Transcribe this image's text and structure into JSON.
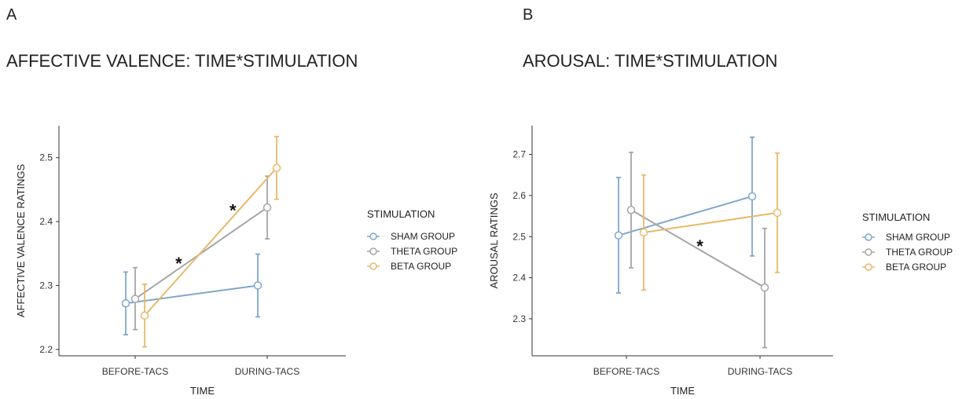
{
  "chart_data": [
    {
      "type": "line",
      "panel": "A",
      "title": "AFFECTIVE VALENCE: TIME*STIMULATION",
      "xlabel": "TIME",
      "ylabel": "AFFECTIVE VALENCE RATINGS",
      "categories": [
        "BEFORE-TACS",
        "DURING-TACS"
      ],
      "ylim": [
        2.19,
        2.55
      ],
      "yticks": [
        "2.2",
        "2.3",
        "2.4",
        "2.5"
      ],
      "legend_title": "STIMULATION",
      "legend_position": "right",
      "series": [
        {
          "name": "SHAM GROUP",
          "color": "#7fa7cf",
          "values": [
            2.272,
            2.3
          ],
          "err_low": [
            2.223,
            2.251
          ],
          "err_high": [
            2.321,
            2.349
          ]
        },
        {
          "name": "THETA GROUP",
          "color": "#a6a6a6",
          "values": [
            2.279,
            2.422
          ],
          "err_low": [
            2.231,
            2.373
          ],
          "err_high": [
            2.328,
            2.471
          ]
        },
        {
          "name": "BETA GROUP",
          "color": "#e9b96a",
          "values": [
            2.253,
            2.484
          ],
          "err_low": [
            2.204,
            2.435
          ],
          "err_high": [
            2.302,
            2.533
          ]
        }
      ],
      "annotations": [
        {
          "text": "*",
          "x": 0.33,
          "y": 2.335
        },
        {
          "text": "*",
          "x": 0.74,
          "y": 2.418
        }
      ]
    },
    {
      "type": "line",
      "panel": "B",
      "title": "AROUSAL: TIME*STIMULATION",
      "xlabel": "TIME",
      "ylabel": "AROUSAL RATINGS",
      "categories": [
        "BEFORE-TACS",
        "DURING-TACS"
      ],
      "ylim": [
        2.21,
        2.77
      ],
      "yticks": [
        "2.3",
        "2.4",
        "2.5",
        "2.6",
        "2.7"
      ],
      "legend_title": "STIMULATION",
      "legend_position": "right",
      "series": [
        {
          "name": "SHAM GROUP",
          "color": "#7fa7cf",
          "values": [
            2.503,
            2.598
          ],
          "err_low": [
            2.363,
            2.453
          ],
          "err_high": [
            2.644,
            2.742
          ]
        },
        {
          "name": "THETA GROUP",
          "color": "#a6a6a6",
          "values": [
            2.565,
            2.376
          ],
          "err_low": [
            2.424,
            2.23
          ],
          "err_high": [
            2.705,
            2.52
          ]
        },
        {
          "name": "BETA GROUP",
          "color": "#e9b96a",
          "values": [
            2.51,
            2.558
          ],
          "err_low": [
            2.37,
            2.413
          ],
          "err_high": [
            2.65,
            2.703
          ]
        }
      ],
      "annotations": [
        {
          "text": "*",
          "x": 0.55,
          "y": 2.478
        }
      ]
    }
  ]
}
